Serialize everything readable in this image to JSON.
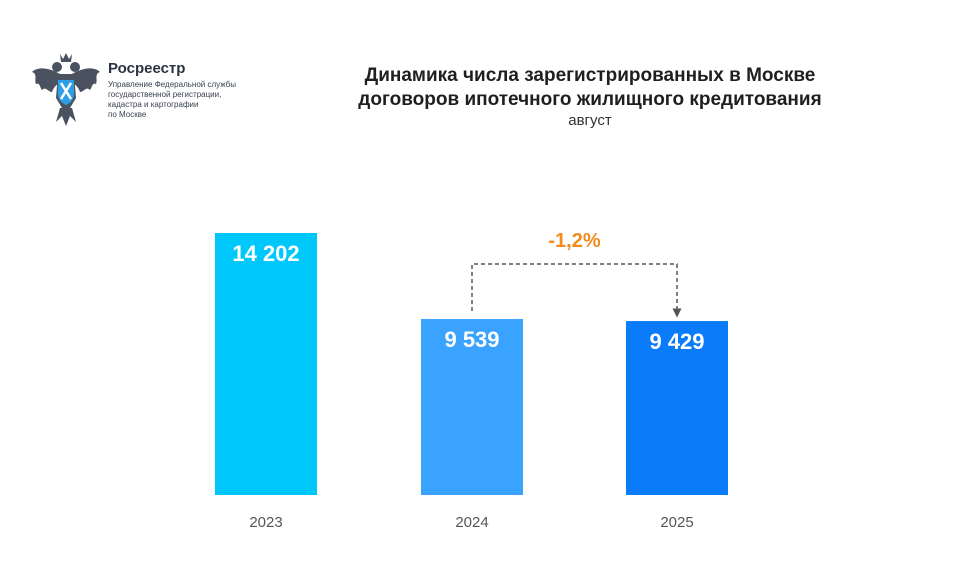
{
  "logo": {
    "name": "Росреестр",
    "subtitle_lines": [
      "Управление Федеральной службы",
      "государственной регистрации,",
      "кадастра и картографии",
      "по Москве"
    ],
    "emblem_icon": "double-headed-eagle-icon"
  },
  "colors": {
    "bar_2023": "#00c8fb",
    "bar_2024": "#3aa2ff",
    "bar_2025": "#0a7cfa",
    "delta": "#f28c1c"
  },
  "chart_data": {
    "type": "bar",
    "title_lines": [
      "Динамика числа зарегистрированных в Москве",
      "договоров ипотечного жилищного кредитования"
    ],
    "subtitle": "август",
    "categories": [
      "2023",
      "2024",
      "2025"
    ],
    "values": [
      14202,
      9539,
      9429
    ],
    "value_labels": [
      "14 202",
      "9 539",
      "9 429"
    ],
    "annotation": {
      "text": "-1,2%",
      "from": "2024",
      "to": "2025"
    },
    "ylim": [
      0,
      14202
    ],
    "grid": false,
    "legend": "none"
  }
}
